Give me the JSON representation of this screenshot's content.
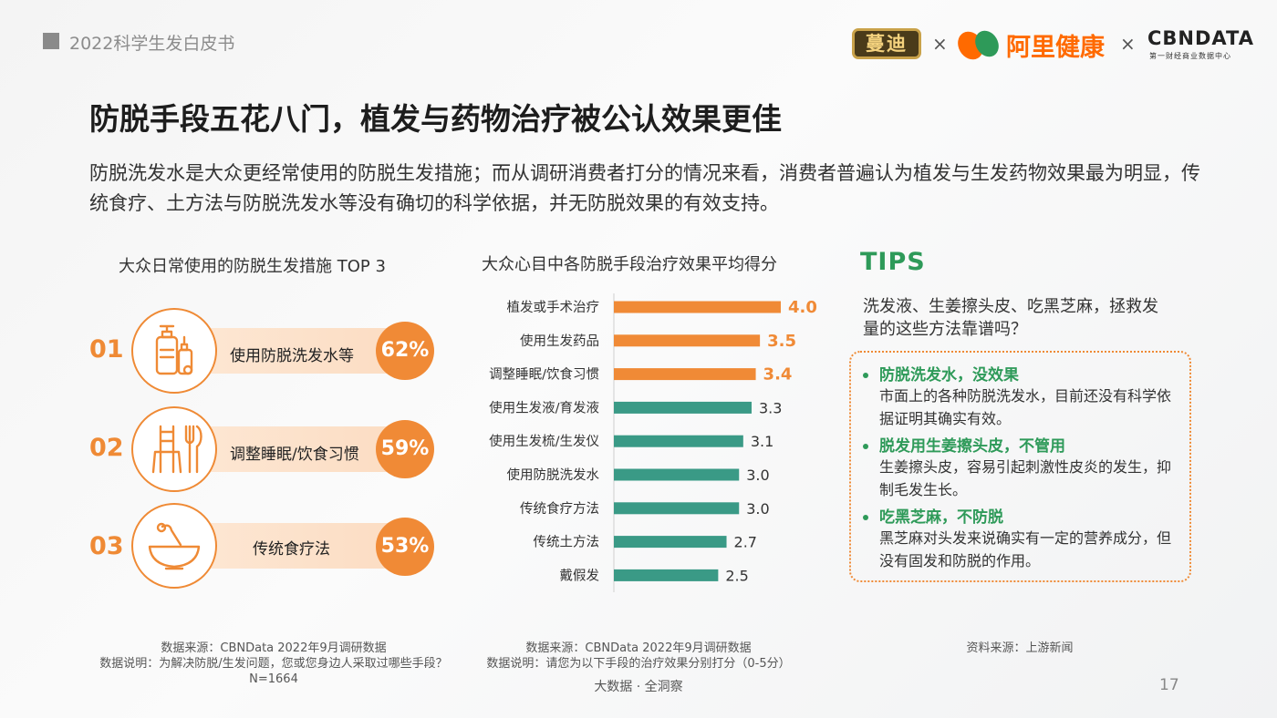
{
  "header": {
    "doc_title": "2022科学生发白皮书",
    "logos": {
      "mandi": "蔓迪",
      "separator": "×",
      "alihealth": "阿里健康",
      "cbndata": "CBNDATA",
      "cbndata_sub": "第一财经商业数据中心"
    }
  },
  "title": "防脱手段五花八门，植发与药物治疗被公认效果更佳",
  "intro": "防脱洗发水是大众更经常使用的防脱生发措施；而从调研消费者打分的情况来看，消费者普遍认为植发与生发药物效果最为明显，传统食疗、土方法与防脱洗发水等没有确切的科学依据，并无防脱效果的有效支持。",
  "left_panel": {
    "title": "大众日常使用的防脱生发措施 TOP 3",
    "items": [
      {
        "num": "01",
        "icon": "shampoo-bottles-icon",
        "label": "使用防脱洗发水等",
        "pct": "62%"
      },
      {
        "num": "02",
        "icon": "chair-fork-knife-icon",
        "label": "调整睡眠/饮食习惯",
        "pct": "59%"
      },
      {
        "num": "03",
        "icon": "bowl-spoon-icon",
        "label": "传统食疗法",
        "pct": "53%"
      }
    ],
    "footnote": {
      "source": "数据来源：CBNData 2022年9月调研数据",
      "note": "数据说明：为解决防脱/生发问题，您或您身边人采取过哪些手段？",
      "n": "N=1664"
    }
  },
  "chart_data": {
    "type": "bar",
    "orientation": "horizontal",
    "title": "大众心目中各防脱手段治疗效果平均得分",
    "categories": [
      "植发或手术治疗",
      "使用生发药品",
      "调整睡眠/饮食习惯",
      "使用生发液/育发液",
      "使用生发梳/生发仪",
      "使用防脱洗发水",
      "传统食疗方法",
      "传统土方法",
      "戴假发"
    ],
    "values": [
      4.0,
      3.5,
      3.4,
      3.3,
      3.1,
      3.0,
      3.0,
      2.7,
      2.5
    ],
    "labels": [
      "4.0",
      "3.5",
      "3.4",
      "3.3",
      "3.1",
      "3.0",
      "3.0",
      "2.7",
      "2.5"
    ],
    "highlight_count": 3,
    "colors": {
      "highlight": "#f08a36",
      "normal": "#3a9a86"
    },
    "xlim": [
      0,
      4.0
    ],
    "footnote": {
      "source": "数据来源：CBNData 2022年9月调研数据",
      "note": "数据说明：请您为以下手段的治疗效果分别打分（0-5分）"
    }
  },
  "tips": {
    "title": "TIPS",
    "question": "洗发液、生姜擦头皮、吃黑芝麻，拯救发量的这些方法靠谱吗？",
    "items": [
      {
        "heading": "防脱洗发水，没效果",
        "body": "市面上的各种防脱洗发水，目前还没有科学依据证明其确实有效。"
      },
      {
        "heading": "脱发用生姜擦头皮，不管用",
        "body": "生姜擦头皮，容易引起刺激性皮炎的发生，抑制毛发生长。"
      },
      {
        "heading": "吃黑芝麻，不防脱",
        "body": "黑芝麻对头发来说确实有一定的营养成分，但没有固发和防脱的作用。"
      }
    ],
    "footnote": "资料来源：上游新闻"
  },
  "footer": {
    "center": "大数据 · 全洞察",
    "page": "17"
  },
  "colors": {
    "orange": "#f08a36",
    "green": "#2e9a59",
    "teal": "#3a9a86"
  }
}
